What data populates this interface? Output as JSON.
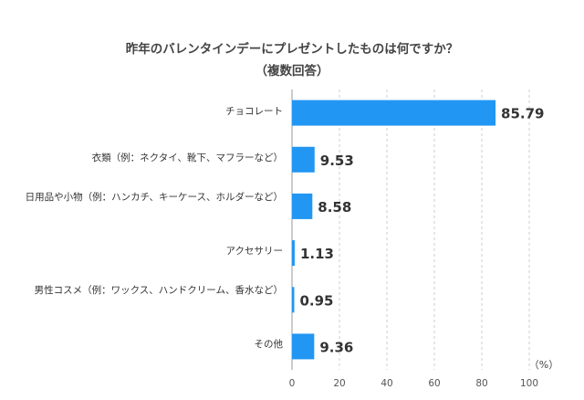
{
  "chart_data": {
    "type": "bar",
    "orientation": "horizontal",
    "title": "昨年のバレンタインデーにプレゼントしたものは何ですか？",
    "subtitle": "（複数回答）",
    "categories": [
      "チョコレート",
      "衣類（例：ネクタイ、靴下、マフラーなど）",
      "日用品や小物（例：ハンカチ、キーケース、ホルダーなど）",
      "アクセサリー",
      "男性コスメ（例：ワックス、ハンドクリーム、香水など）",
      "その他"
    ],
    "values": [
      85.79,
      9.53,
      8.58,
      1.13,
      0.95,
      9.36
    ],
    "value_labels": [
      "85.79",
      "9.53",
      "8.58",
      "1.13",
      "0.95",
      "9.36"
    ],
    "xlim": [
      0,
      100
    ],
    "xticks": [
      "0",
      "20",
      "40",
      "60",
      "80",
      "100"
    ],
    "xunit": "（%）",
    "grid": true,
    "bar_color": "#2196f3"
  }
}
